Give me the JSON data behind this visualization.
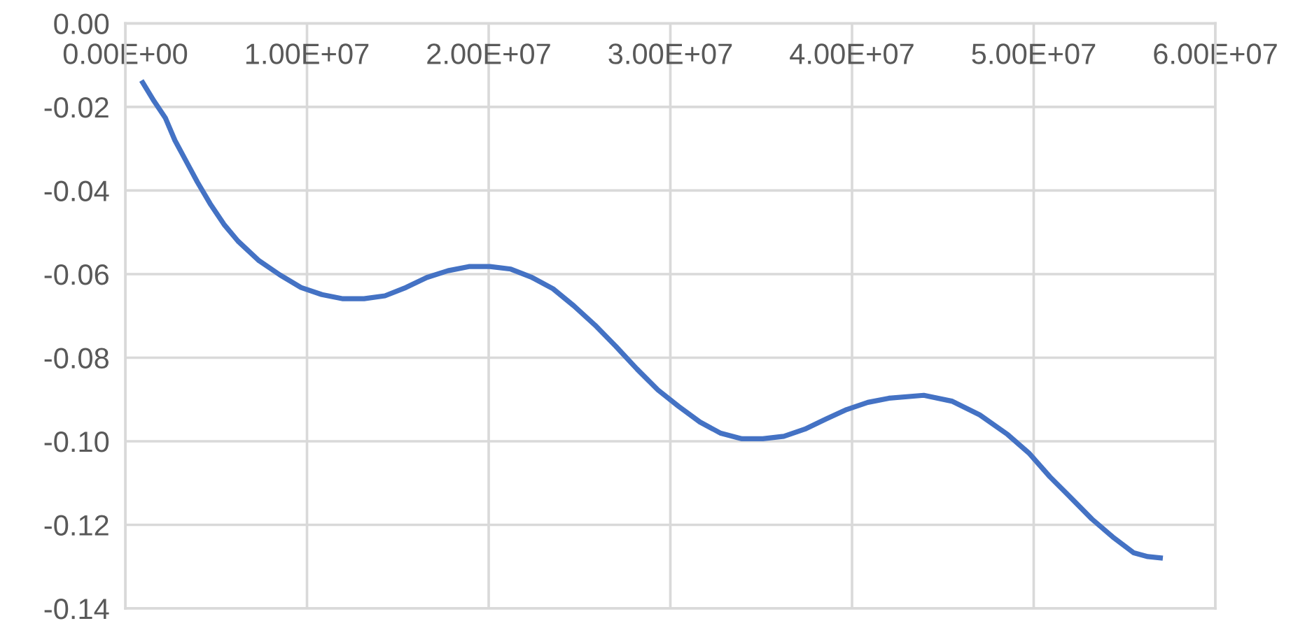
{
  "chart_data": {
    "type": "line",
    "x": [
      960000,
      1580000,
      2200000,
      2730000,
      3350000,
      3970000,
      4660000,
      5430000,
      6200000,
      7360000,
      8510000,
      9670000,
      10820000,
      11980000,
      13140000,
      14290000,
      15450000,
      16600000,
      17760000,
      18910000,
      20070000,
      21220000,
      22380000,
      23540000,
      24690000,
      25850000,
      27000000,
      28160000,
      29310000,
      30470000,
      31630000,
      32780000,
      33940000,
      35090000,
      36250000,
      37400000,
      38560000,
      39710000,
      40870000,
      42030000,
      43950000,
      45490000,
      47030000,
      48570000,
      49730000,
      50890000,
      52040000,
      53200000,
      54350000,
      55510000,
      56280000,
      56970000
    ],
    "series": [
      {
        "color": "#4472c4",
        "values": [
          -0.0142,
          -0.0186,
          -0.0226,
          -0.028,
          -0.033,
          -0.038,
          -0.0431,
          -0.0481,
          -0.0521,
          -0.0568,
          -0.0602,
          -0.0632,
          -0.0649,
          -0.0659,
          -0.0659,
          -0.0652,
          -0.0632,
          -0.0608,
          -0.0592,
          -0.0582,
          -0.0582,
          -0.0588,
          -0.0608,
          -0.0635,
          -0.0676,
          -0.0722,
          -0.0773,
          -0.0827,
          -0.0877,
          -0.0917,
          -0.0954,
          -0.0981,
          -0.0994,
          -0.0994,
          -0.0988,
          -0.0971,
          -0.0947,
          -0.0924,
          -0.0907,
          -0.0897,
          -0.089,
          -0.0904,
          -0.0937,
          -0.0984,
          -0.1028,
          -0.1085,
          -0.1135,
          -0.1186,
          -0.1229,
          -0.1267,
          -0.1276,
          -0.1279
        ]
      }
    ],
    "xlim": [
      0,
      60000000
    ],
    "xticks": [
      {
        "value": 0,
        "label": "0.00E+00"
      },
      {
        "value": 10000000,
        "label": "1.00E+07"
      },
      {
        "value": 20000000,
        "label": "2.00E+07"
      },
      {
        "value": 30000000,
        "label": "3.00E+07"
      },
      {
        "value": 40000000,
        "label": "4.00E+07"
      },
      {
        "value": 50000000,
        "label": "5.00E+07"
      },
      {
        "value": 60000000,
        "label": "6.00E+07"
      }
    ],
    "ylim": [
      -0.14,
      0
    ],
    "yticks": [
      {
        "value": 0,
        "label": "0.00"
      },
      {
        "value": -0.02,
        "label": "-0.02"
      },
      {
        "value": -0.04,
        "label": "-0.04"
      },
      {
        "value": -0.06,
        "label": "-0.06"
      },
      {
        "value": -0.08,
        "label": "-0.08"
      },
      {
        "value": -0.1,
        "label": "-0.10"
      },
      {
        "value": -0.12,
        "label": "-0.12"
      },
      {
        "value": -0.14,
        "label": "-0.14"
      }
    ],
    "grid": true,
    "marker": "none",
    "line_style": "solid",
    "legend": false
  }
}
